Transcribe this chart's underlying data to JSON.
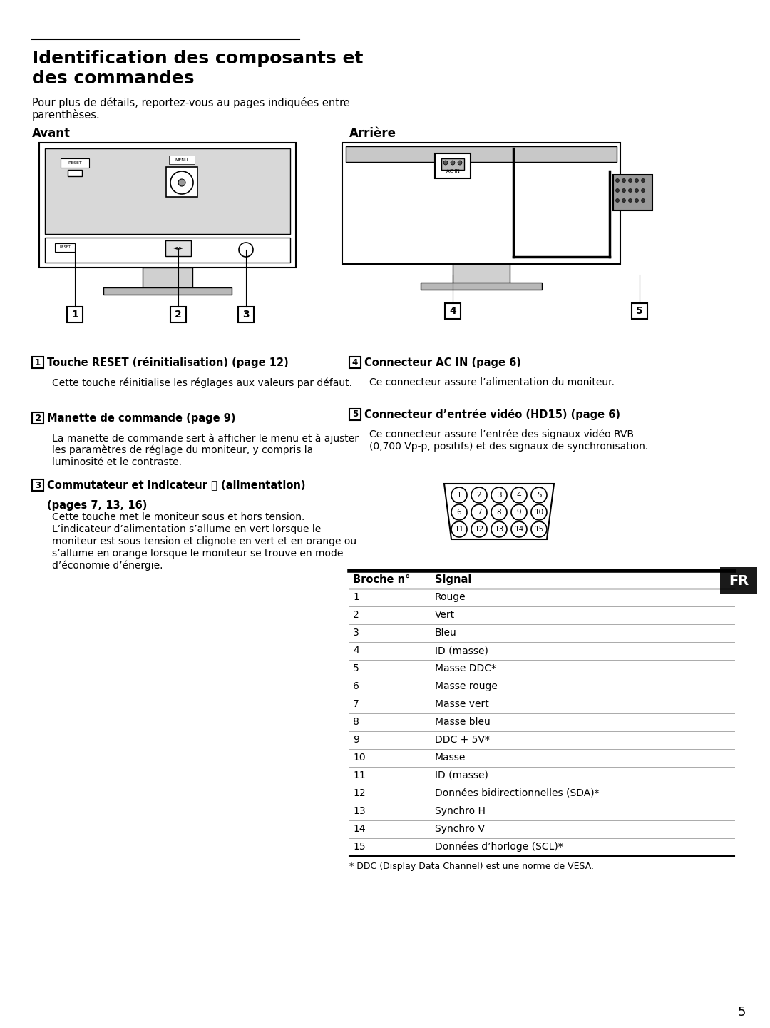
{
  "title_line1": "Identification des composants et",
  "title_line2": "des commandes",
  "subtitle_line1": "Pour plus de détails, reportez-vous au pages indiquées entre",
  "subtitle_line2": "parenthèses.",
  "section_avant": "Avant",
  "section_arriere": "Arrière",
  "items_left": [
    {
      "num": "1",
      "heading": "Touche RESET (réinitialisation) (page 12)",
      "body": "Cette touche réinitialise les réglages aux valeurs par défaut."
    },
    {
      "num": "2",
      "heading": "Manette de commande (page 9)",
      "body": "La manette de commande sert à afficher le menu et à ajuster\nles paramètres de réglage du moniteur, y compris la\nluminosité et le contraste."
    },
    {
      "num": "3",
      "heading_line1": "Commutateur et indicateur ⏻ (alimentation)",
      "heading_line2": "(pages 7, 13, 16)",
      "body": "Cette touche met le moniteur sous et hors tension.\nL’indicateur d’alimentation s’allume en vert lorsque le\nmoniteur est sous tension et clignote en vert et en orange ou\ns’allume en orange lorsque le moniteur se trouve en mode\nd’économie d’énergie."
    }
  ],
  "items_right": [
    {
      "num": "4",
      "heading": "Connecteur AC IN (page 6)",
      "body": "Ce connecteur assure l’alimentation du moniteur."
    },
    {
      "num": "5",
      "heading": "Connecteur d’entrée vidéo (HD15) (page 6)",
      "body": "Ce connecteur assure l’entrée des signaux vidéo RVB\n(0,700 Vp-p, positifs) et des signaux de synchronisation."
    }
  ],
  "table_header": [
    "Broche n°",
    "Signal"
  ],
  "table_rows": [
    [
      "1",
      "Rouge"
    ],
    [
      "2",
      "Vert"
    ],
    [
      "3",
      "Bleu"
    ],
    [
      "4",
      "ID (masse)"
    ],
    [
      "5",
      "Masse DDC*"
    ],
    [
      "6",
      "Masse rouge"
    ],
    [
      "7",
      "Masse vert"
    ],
    [
      "8",
      "Masse bleu"
    ],
    [
      "9",
      "DDC + 5V*"
    ],
    [
      "10",
      "Masse"
    ],
    [
      "11",
      "ID (masse)"
    ],
    [
      "12",
      "Données bidirectionnelles (SDA)*"
    ],
    [
      "13",
      "Synchro H"
    ],
    [
      "14",
      "Synchro V"
    ],
    [
      "15",
      "Données d’horloge (SCL)*"
    ]
  ],
  "footnote": "* DDC (Display Data Channel) est une norme de VESA.",
  "page_num": "5",
  "fr_label": "FR",
  "bg_color": "#ffffff",
  "text_color": "#000000",
  "fr_bg": "#1a1a1a",
  "fr_text": "#ffffff"
}
